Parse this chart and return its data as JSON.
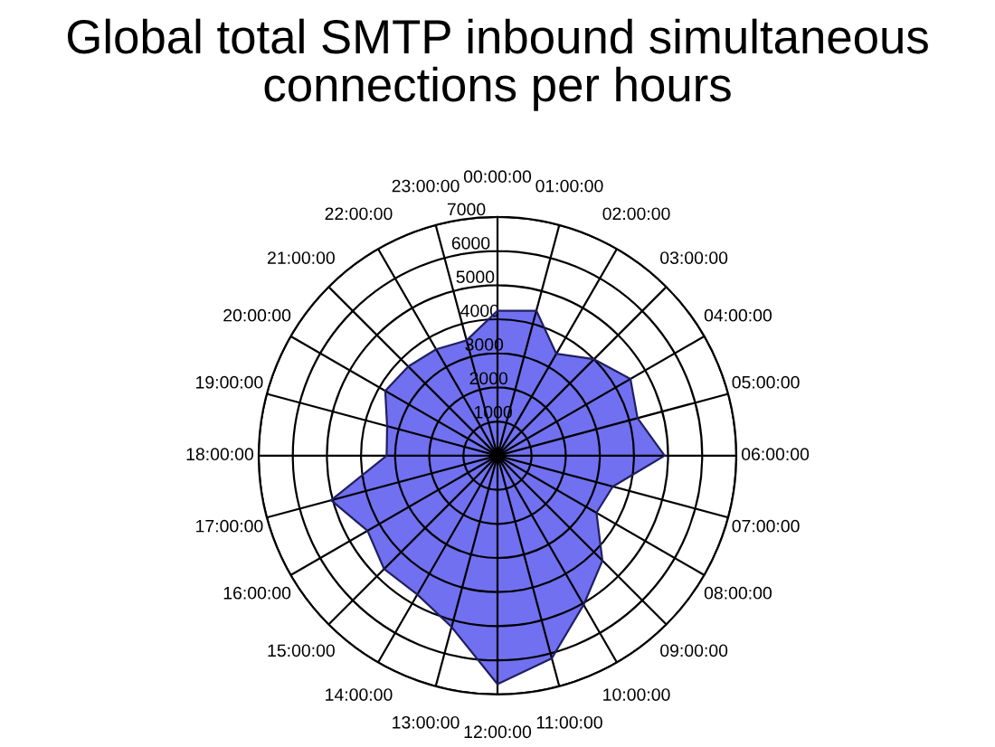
{
  "chart_data": {
    "type": "radar",
    "title": "Global total SMTP inbound simultaneous\nconnections per hours",
    "categories": [
      "00:00:00",
      "01:00:00",
      "02:00:00",
      "03:00:00",
      "04:00:00",
      "05:00:00",
      "06:00:00",
      "07:00:00",
      "08:00:00",
      "09:00:00",
      "10:00:00",
      "11:00:00",
      "12:00:00",
      "13:00:00",
      "14:00:00",
      "15:00:00",
      "16:00:00",
      "17:00:00",
      "18:00:00",
      "19:00:00",
      "20:00:00",
      "21:00:00",
      "22:00:00",
      "23:00:00"
    ],
    "series": [
      {
        "color": "#7070f0",
        "values": [
          4250,
          4400,
          3450,
          4000,
          4500,
          4250,
          4900,
          3500,
          3350,
          4350,
          5050,
          6150,
          6700,
          5200,
          4700,
          4700,
          4400,
          5050,
          3250,
          3350,
          3800,
          3700,
          3600,
          3500
        ]
      }
    ],
    "ylim": [
      0,
      7000
    ],
    "yticks": [
      1000,
      2000,
      3000,
      4000,
      5000,
      6000,
      7000
    ],
    "grid": true,
    "legend": false
  }
}
